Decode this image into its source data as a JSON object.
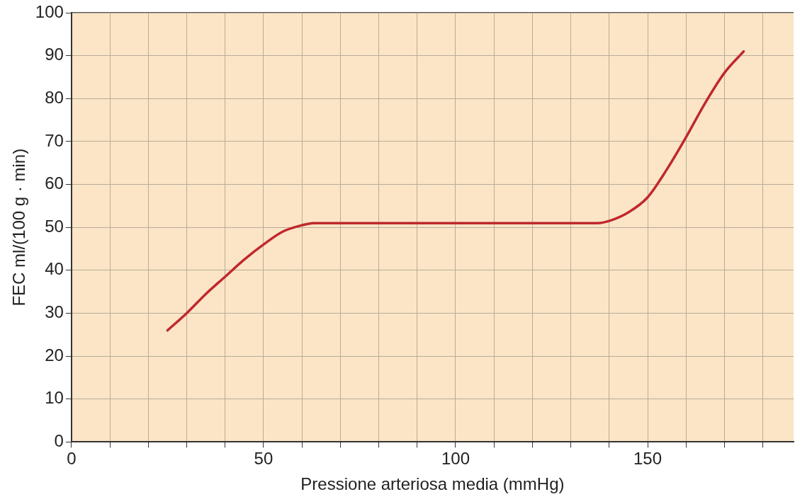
{
  "chart_data": {
    "type": "line",
    "xlabel": "Pressione arteriosa media (mmHg)",
    "ylabel": "FEC ml/(100 g · min)",
    "x": [
      25,
      30,
      35,
      40,
      45,
      50,
      55,
      60,
      63,
      70,
      80,
      90,
      100,
      110,
      120,
      130,
      137,
      140,
      145,
      150,
      155,
      160,
      165,
      170,
      175
    ],
    "values": [
      26,
      30,
      34.5,
      38.5,
      42.5,
      46,
      49,
      50.5,
      51,
      51,
      51,
      51,
      51,
      51,
      51,
      51,
      51,
      51.5,
      53.5,
      57,
      63.5,
      71,
      79,
      86,
      91
    ],
    "color": "#c0282d",
    "marker": "none",
    "line_style": "solid",
    "grid": true,
    "xlim": [
      0,
      188
    ],
    "ylim": [
      0,
      100
    ],
    "xticks": [
      0,
      {
        "value": 10,
        "label": null
      },
      {
        "value": 20,
        "label": null
      },
      {
        "value": 30,
        "label": null
      },
      {
        "value": 40,
        "label": null
      },
      50,
      {
        "value": 60,
        "label": null
      },
      {
        "value": 70,
        "label": null
      },
      {
        "value": 80,
        "label": null
      },
      {
        "value": 90,
        "label": null
      },
      100,
      {
        "value": 110,
        "label": null
      },
      {
        "value": 120,
        "label": null
      },
      {
        "value": 130,
        "label": null
      },
      {
        "value": 140,
        "label": null
      },
      150,
      {
        "value": 160,
        "label": null
      },
      {
        "value": 170,
        "label": null
      },
      {
        "value": 180,
        "label": null
      }
    ],
    "yticks": [
      0,
      10,
      20,
      30,
      40,
      50,
      60,
      70,
      80,
      90,
      100
    ]
  }
}
